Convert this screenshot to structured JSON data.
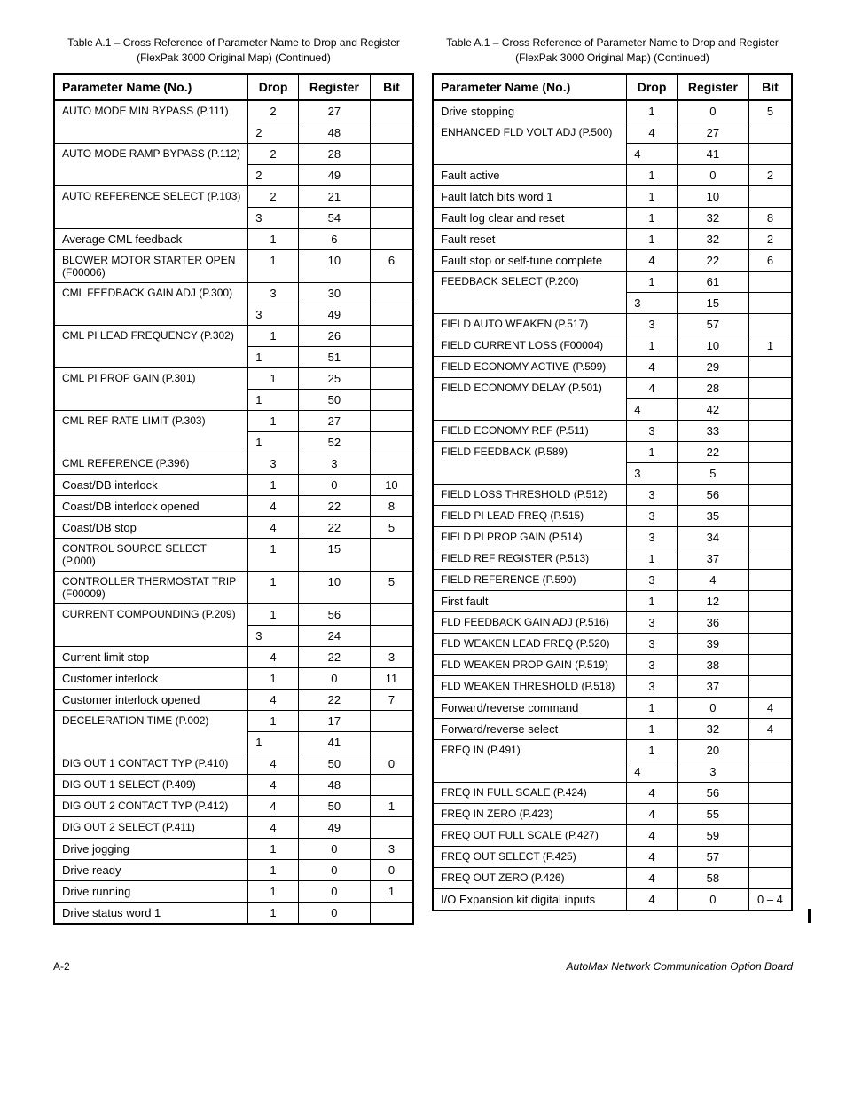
{
  "caption": "Table A.1 – Cross Reference of Parameter Name to Drop and Register (FlexPak 3000 Original Map) (Continued)",
  "headers": [
    "Parameter Name (No.)",
    "Drop",
    "Register",
    "Bit"
  ],
  "footer_left": "A-2",
  "footer_right": "AutoMax Network Communication Option Board",
  "left_rows": [
    {
      "name": "AUTO MODE MIN BYPASS (P.111)",
      "drop": "2",
      "reg": "27",
      "bit": "",
      "rowspan": 2
    },
    {
      "drop": "2",
      "reg": "48",
      "bit": ""
    },
    {
      "name": "AUTO MODE RAMP BYPASS (P.112)",
      "drop": "2",
      "reg": "28",
      "bit": "",
      "rowspan": 2
    },
    {
      "drop": "2",
      "reg": "49",
      "bit": ""
    },
    {
      "name": "AUTO REFERENCE SELECT (P.103)",
      "drop": "2",
      "reg": "21",
      "bit": "",
      "rowspan": 2
    },
    {
      "drop": "3",
      "reg": "54",
      "bit": ""
    },
    {
      "name": "Average CML feedback",
      "sc": [
        8,
        11
      ],
      "drop": "1",
      "reg": "6",
      "bit": ""
    },
    {
      "name": "BLOWER MOTOR STARTER OPEN (F00006)",
      "drop": "1",
      "reg": "10",
      "bit": "6"
    },
    {
      "name": "CML FEEDBACK GAIN ADJ (P.300)",
      "drop": "3",
      "reg": "30",
      "bit": "",
      "rowspan": 2
    },
    {
      "drop": "3",
      "reg": "49",
      "bit": ""
    },
    {
      "name": "CML PI LEAD FREQUENCY (P.302)",
      "drop": "1",
      "reg": "26",
      "bit": "",
      "rowspan": 2
    },
    {
      "drop": "1",
      "reg": "51",
      "bit": ""
    },
    {
      "name": "CML PI PROP GAIN (P.301)",
      "drop": "1",
      "reg": "25",
      "bit": "",
      "rowspan": 2
    },
    {
      "drop": "1",
      "reg": "50",
      "bit": ""
    },
    {
      "name": "CML REF RATE LIMIT (P.303)",
      "drop": "1",
      "reg": "27",
      "bit": "",
      "rowspan": 2
    },
    {
      "drop": "1",
      "reg": "52",
      "bit": ""
    },
    {
      "name": "CML REFERENCE (P.396)",
      "drop": "3",
      "reg": "3",
      "bit": ""
    },
    {
      "name": "Coast/DB interlock",
      "drop": "1",
      "reg": "0",
      "bit": "10"
    },
    {
      "name": "Coast/DB interlock opened",
      "drop": "4",
      "reg": "22",
      "bit": "8"
    },
    {
      "name": "Coast/DB stop",
      "drop": "4",
      "reg": "22",
      "bit": "5"
    },
    {
      "name": "CONTROL SOURCE SELECT (P.000)",
      "drop": "1",
      "reg": "15",
      "bit": ""
    },
    {
      "name": "CONTROLLER THERMOSTAT TRIP (F00009)",
      "drop": "1",
      "reg": "10",
      "bit": "5"
    },
    {
      "name": "CURRENT COMPOUNDING (P.209)",
      "drop": "1",
      "reg": "56",
      "bit": "",
      "rowspan": 2
    },
    {
      "drop": "3",
      "reg": "24",
      "bit": ""
    },
    {
      "name": "Current limit stop",
      "drop": "4",
      "reg": "22",
      "bit": "3"
    },
    {
      "name": "Customer interlock",
      "drop": "1",
      "reg": "0",
      "bit": "11"
    },
    {
      "name": "Customer interlock opened",
      "drop": "4",
      "reg": "22",
      "bit": "7"
    },
    {
      "name": "DECELERATION TIME (P.002)",
      "drop": "1",
      "reg": "17",
      "bit": "",
      "rowspan": 2
    },
    {
      "drop": "1",
      "reg": "41",
      "bit": ""
    },
    {
      "name": "DIG OUT 1 CONTACT TYP (P.410)",
      "drop": "4",
      "reg": "50",
      "bit": "0"
    },
    {
      "name": "DIG OUT 1 SELECT (P.409)",
      "drop": "4",
      "reg": "48",
      "bit": ""
    },
    {
      "name": "DIG OUT 2 CONTACT TYP (P.412)",
      "drop": "4",
      "reg": "50",
      "bit": "1"
    },
    {
      "name": "DIG OUT 2 SELECT (P.411)",
      "drop": "4",
      "reg": "49",
      "bit": ""
    },
    {
      "name": "Drive jogging",
      "drop": "1",
      "reg": "0",
      "bit": "3"
    },
    {
      "name": "Drive ready",
      "drop": "1",
      "reg": "0",
      "bit": "0"
    },
    {
      "name": "Drive running",
      "drop": "1",
      "reg": "0",
      "bit": "1"
    },
    {
      "name": "Drive status word 1",
      "drop": "1",
      "reg": "0",
      "bit": ""
    }
  ],
  "right_rows": [
    {
      "name": "Drive stopping",
      "drop": "1",
      "reg": "0",
      "bit": "5"
    },
    {
      "name": "ENHANCED FLD VOLT ADJ (P.500)",
      "drop": "4",
      "reg": "27",
      "bit": "",
      "rowspan": 2
    },
    {
      "drop": "4",
      "reg": "41",
      "bit": ""
    },
    {
      "name": "Fault active",
      "drop": "1",
      "reg": "0",
      "bit": "2"
    },
    {
      "name": "Fault latch bits word 1",
      "drop": "1",
      "reg": "10",
      "bit": ""
    },
    {
      "name": "Fault log clear and reset",
      "drop": "1",
      "reg": "32",
      "bit": "8"
    },
    {
      "name": "Fault reset",
      "drop": "1",
      "reg": "32",
      "bit": "2"
    },
    {
      "name": "Fault stop or self-tune complete",
      "drop": "4",
      "reg": "22",
      "bit": "6"
    },
    {
      "name": "FEEDBACK SELECT (P.200)",
      "drop": "1",
      "reg": "61",
      "bit": "",
      "rowspan": 2
    },
    {
      "drop": "3",
      "reg": "15",
      "bit": ""
    },
    {
      "name": "FIELD AUTO WEAKEN (P.517)",
      "drop": "3",
      "reg": "57",
      "bit": ""
    },
    {
      "name": "FIELD CURRENT LOSS (F00004)",
      "drop": "1",
      "reg": "10",
      "bit": "1"
    },
    {
      "name": "FIELD ECONOMY ACTIVE (P.599)",
      "drop": "4",
      "reg": "29",
      "bit": ""
    },
    {
      "name": "FIELD ECONOMY DELAY (P.501)",
      "drop": "4",
      "reg": "28",
      "bit": "",
      "rowspan": 2
    },
    {
      "drop": "4",
      "reg": "42",
      "bit": ""
    },
    {
      "name": "FIELD ECONOMY REF (P.511)",
      "drop": "3",
      "reg": "33",
      "bit": ""
    },
    {
      "name": "FIELD FEEDBACK (P.589)",
      "drop": "1",
      "reg": "22",
      "bit": "",
      "rowspan": 2
    },
    {
      "drop": "3",
      "reg": "5",
      "bit": ""
    },
    {
      "name": "FIELD LOSS THRESHOLD (P.512)",
      "drop": "3",
      "reg": "56",
      "bit": ""
    },
    {
      "name": "FIELD PI LEAD FREQ (P.515)",
      "drop": "3",
      "reg": "35",
      "bit": ""
    },
    {
      "name": "FIELD PI PROP GAIN (P.514)",
      "drop": "3",
      "reg": "34",
      "bit": ""
    },
    {
      "name": "FIELD REF REGISTER (P.513)",
      "drop": "1",
      "reg": "37",
      "bit": ""
    },
    {
      "name": "FIELD REFERENCE (P.590)",
      "drop": "3",
      "reg": "4",
      "bit": ""
    },
    {
      "name": "First fault",
      "drop": "1",
      "reg": "12",
      "bit": ""
    },
    {
      "name": "FLD FEEDBACK GAIN ADJ (P.516)",
      "drop": "3",
      "reg": "36",
      "bit": ""
    },
    {
      "name": "FLD WEAKEN LEAD FREQ (P.520)",
      "drop": "3",
      "reg": "39",
      "bit": ""
    },
    {
      "name": "FLD WEAKEN PROP GAIN (P.519)",
      "drop": "3",
      "reg": "38",
      "bit": ""
    },
    {
      "name": "FLD WEAKEN THRESHOLD (P.518)",
      "drop": "3",
      "reg": "37",
      "bit": ""
    },
    {
      "name": "Forward/reverse command",
      "drop": "1",
      "reg": "0",
      "bit": "4"
    },
    {
      "name": "Forward/reverse select",
      "drop": "1",
      "reg": "32",
      "bit": "4"
    },
    {
      "name": "FREQ IN (P.491)",
      "drop": "1",
      "reg": "20",
      "bit": "",
      "rowspan": 2
    },
    {
      "drop": "4",
      "reg": "3",
      "bit": ""
    },
    {
      "name": "FREQ IN FULL SCALE (P.424)",
      "drop": "4",
      "reg": "56",
      "bit": ""
    },
    {
      "name": "FREQ IN ZERO (P.423)",
      "drop": "4",
      "reg": "55",
      "bit": ""
    },
    {
      "name": "FREQ OUT FULL SCALE (P.427)",
      "drop": "4",
      "reg": "59",
      "bit": ""
    },
    {
      "name": "FREQ OUT SELECT (P.425)",
      "drop": "4",
      "reg": "57",
      "bit": ""
    },
    {
      "name": "FREQ OUT ZERO (P.426)",
      "drop": "4",
      "reg": "58",
      "bit": ""
    },
    {
      "name": "I/O Expansion kit digital inputs",
      "drop": "4",
      "reg": "0",
      "bit": "0 – 4"
    }
  ]
}
